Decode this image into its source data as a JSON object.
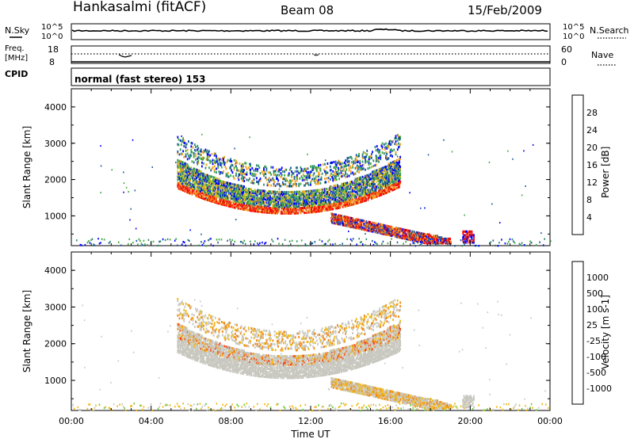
{
  "header": {
    "station": "Hankasalmi (fitACF)",
    "beam": "Beam 08",
    "date": "15/Feb/2009"
  },
  "strips": {
    "nsky_label": "N.Sky",
    "nsky_ticks": [
      "10^5",
      "10^0"
    ],
    "nsearch_label": "N.Search",
    "nsearch_ticks": [
      "10^5",
      "10^0"
    ],
    "freq_label": [
      "Freq.",
      "[MHz]"
    ],
    "freq_ticks": [
      "18",
      "8"
    ],
    "nave_label": "Nave",
    "nave_ticks": [
      "60",
      "0"
    ],
    "cpid_label": "CPID",
    "cpid_text": "normal (fast stereo) 153"
  },
  "colors": {
    "power": [
      "#0000ff",
      "#1e5aa0",
      "#2f8f6a",
      "#3fa940",
      "#c8c81a",
      "#f0a020",
      "#f06818",
      "#e02010",
      "#ff0000"
    ],
    "velocity": [
      "#1a28c8",
      "#2a6aa8",
      "#2a9a50",
      "#6acc3a",
      "#c8c8c0",
      "#f0b818",
      "#f08a18",
      "#f04818",
      "#ff0000"
    ]
  },
  "chart_data": [
    {
      "type": "heatmap",
      "name": "power",
      "ylabel": "Slant Range [km]",
      "yticks": [
        "4000",
        "3000",
        "2000",
        "1000"
      ],
      "ylim": [
        180,
        4500
      ],
      "xlim_hours": [
        0,
        24
      ],
      "colorbar_label": "Power [dB]",
      "colorbar_ticks": [
        "28",
        "24",
        "20",
        "16",
        "12",
        "8",
        "4"
      ]
    },
    {
      "type": "heatmap",
      "name": "velocity",
      "ylabel": "Slant Range [km]",
      "yticks": [
        "4000",
        "3000",
        "2000",
        "1000"
      ],
      "ylim": [
        180,
        4500
      ],
      "xlim_hours": [
        0,
        24
      ],
      "colorbar_label": "Velocity [m s-1]",
      "colorbar_ticks": [
        "1000",
        "500",
        "100",
        "25",
        "-25",
        "-100",
        "-500",
        "-1000"
      ]
    }
  ],
  "xaxis": {
    "ticks": [
      "00:00",
      "04:00",
      "08:00",
      "12:00",
      "16:00",
      "20:00",
      "00:00"
    ],
    "label": "Time UT"
  }
}
